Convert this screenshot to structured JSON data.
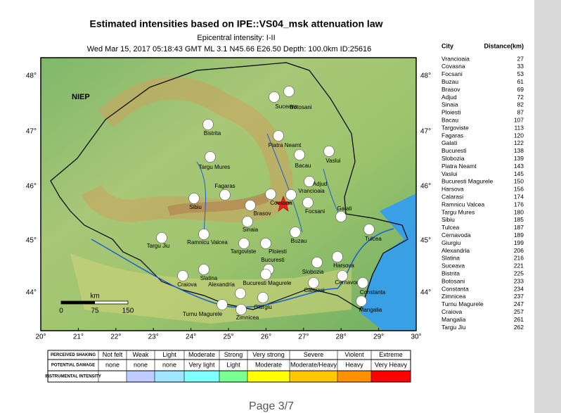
{
  "header": {
    "title": "Estimated intensities based on IPE::VS04_msk attenuation law",
    "subtitle": "Epicentral intensity: I-II",
    "event": "Wed Mar 15, 2017 05:18:43 GMT ML 3.1 N45.66 E26.50 Depth: 100.0km ID:25616"
  },
  "map": {
    "agency": "NIEP",
    "lon_labels": [
      "20°",
      "21°",
      "22°",
      "23°",
      "24°",
      "25°",
      "26°",
      "27°",
      "28°",
      "29°",
      "30°"
    ],
    "lat_labels": [
      "48°",
      "47°",
      "46°",
      "45°",
      "44°"
    ],
    "scale": {
      "unit": "km",
      "labels": [
        "0",
        "75",
        "150"
      ]
    },
    "cities": [
      "Botosani",
      "Suceava",
      "Bistrita",
      "Piatra Neamt",
      "Vaslui",
      "Bacau",
      "Targu Mures",
      "Adjud",
      "Vrancioaia",
      "Fagaras",
      "Covasna",
      "Sibiu",
      "Brasov",
      "Focsani",
      "Galati",
      "Sinaia",
      "Tulcea",
      "Buzau",
      "Ramnicu Valcea",
      "Targu Jiu",
      "Targoviste",
      "Ploiesti",
      "Bucuresti",
      "Harsova",
      "Slobozia",
      "Slatina",
      "Bucuresti Magurele",
      "Craiova",
      "Cernavoda",
      "Alexandria",
      "Calarasi",
      "Constanta",
      "Giurgiu",
      "Turnu Magurele",
      "Zimnicea",
      "Mangalia"
    ]
  },
  "table": {
    "header": [
      "City",
      "Distance(km)"
    ],
    "rows": [
      [
        "Vrancioaia",
        27
      ],
      [
        "Covasna",
        33
      ],
      [
        "Focsani",
        53
      ],
      [
        "Buzau",
        61
      ],
      [
        "Brasov",
        69
      ],
      [
        "Adjud",
        72
      ],
      [
        "Sinaia",
        82
      ],
      [
        "Ploiesti",
        87
      ],
      [
        "Bacau",
        107
      ],
      [
        "Targoviste",
        113
      ],
      [
        "Fagaras",
        120
      ],
      [
        "Galati",
        122
      ],
      [
        "Bucuresti",
        138
      ],
      [
        "Slobozia",
        139
      ],
      [
        "Piatra Neamt",
        143
      ],
      [
        "Vaslui",
        145
      ],
      [
        "Bucuresti Magurele",
        150
      ],
      [
        "Harsova",
        156
      ],
      [
        "Calarasi",
        174
      ],
      [
        "Ramnicu Valcea",
        176
      ],
      [
        "Targu Mures",
        180
      ],
      [
        "Sibiu",
        185
      ],
      [
        "Tulcea",
        187
      ],
      [
        "Cernavoda",
        189
      ],
      [
        "Giurgiu",
        199
      ],
      [
        "Alexandria",
        206
      ],
      [
        "Slatina",
        216
      ],
      [
        "Suceava",
        221
      ],
      [
        "Bistrita",
        225
      ],
      [
        "Botosani",
        233
      ],
      [
        "Constanta",
        234
      ],
      [
        "Zimnicea",
        237
      ],
      [
        "Turnu Magurele",
        247
      ],
      [
        "Craiova",
        257
      ],
      [
        "Mangalia",
        261
      ],
      [
        "Targu Jiu",
        262
      ]
    ]
  },
  "legend": {
    "rows": [
      [
        "PERCEIVED SHAKING",
        "Not felt",
        "Weak",
        "Light",
        "Moderate",
        "Strong",
        "Very strong",
        "Severe",
        "Violent",
        "Extreme"
      ],
      [
        "POTENTIAL DAMAGE",
        "none",
        "none",
        "none",
        "Very light",
        "Light",
        "Moderate",
        "Moderate/Heavy",
        "Heavy",
        "Very Heavy"
      ],
      [
        "INSTRUMENTAL INTENSITY"
      ]
    ]
  },
  "footer": {
    "page": "Page 3/7"
  }
}
